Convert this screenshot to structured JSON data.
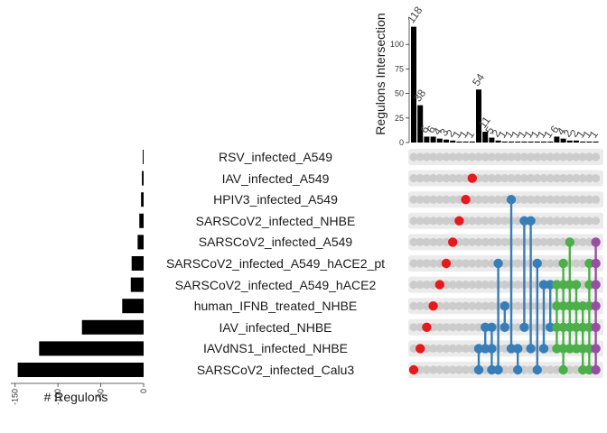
{
  "chart_data": {
    "type": "upset",
    "intersection_axis": {
      "label": "Regulons Intersection",
      "ticks": [
        0,
        25,
        50,
        75,
        100
      ],
      "ylim": [
        0,
        125
      ]
    },
    "set_size_axis": {
      "label": "# Regulons",
      "ticks": [
        "-150",
        "-100",
        "-50",
        "0"
      ],
      "xlim": [
        -155,
        0
      ]
    },
    "sets": [
      {
        "name": "RSV_infected_A549",
        "size": 1
      },
      {
        "name": "IAV_infected_A549",
        "size": 2
      },
      {
        "name": "HPIV3_infected_A549",
        "size": 3
      },
      {
        "name": "SARSCoV2_infected_NHBE",
        "size": 5
      },
      {
        "name": "SARSCoV2_infected_A549",
        "size": 7
      },
      {
        "name": "SARSCoV2_infected_A549_hACE2_pt",
        "size": 14
      },
      {
        "name": "SARSCoV2_infected_A549_hACE2",
        "size": 15
      },
      {
        "name": "human_IFNB_treated_NHBE",
        "size": 25
      },
      {
        "name": "IAV_infected_NHBE",
        "size": 72
      },
      {
        "name": "IAVdNS1_infected_NHBE",
        "size": 122
      },
      {
        "name": "SARSCoV2_infected_Calu3",
        "size": 147
      }
    ],
    "intersections": [
      {
        "size": 118,
        "label": "118",
        "sets": [
          10
        ],
        "color": "#e41a1c"
      },
      {
        "size": 38,
        "label": "38",
        "sets": [
          9
        ],
        "color": "#e41a1c"
      },
      {
        "size": 6,
        "label": "6",
        "sets": [
          8
        ],
        "color": "#e41a1c"
      },
      {
        "size": 6,
        "label": "6",
        "sets": [
          7
        ],
        "color": "#e41a1c"
      },
      {
        "size": 4,
        "label": "4",
        "sets": [
          6
        ],
        "color": "#e41a1c"
      },
      {
        "size": 3,
        "label": "3",
        "sets": [
          5
        ],
        "color": "#e41a1c"
      },
      {
        "size": 2,
        "label": "2",
        "sets": [
          4
        ],
        "color": "#e41a1c"
      },
      {
        "size": 1,
        "label": "1",
        "sets": [
          3
        ],
        "color": "#e41a1c"
      },
      {
        "size": 1,
        "label": "1",
        "sets": [
          2
        ],
        "color": "#e41a1c"
      },
      {
        "size": 1,
        "label": "1",
        "sets": [
          1
        ],
        "color": "#e41a1c"
      },
      {
        "size": 54,
        "label": "54",
        "sets": [
          9,
          10
        ],
        "color": "#377eb8"
      },
      {
        "size": 11,
        "label": "11",
        "sets": [
          8,
          9
        ],
        "color": "#377eb8"
      },
      {
        "size": 5,
        "label": "5",
        "sets": [
          8,
          9,
          10
        ],
        "color": "#377eb8"
      },
      {
        "size": 2,
        "label": "2",
        "sets": [
          5,
          10
        ],
        "color": "#377eb8"
      },
      {
        "size": 1,
        "label": "1",
        "sets": [
          7,
          8
        ],
        "color": "#377eb8"
      },
      {
        "size": 1,
        "label": "1",
        "sets": [
          2,
          9
        ],
        "color": "#377eb8"
      },
      {
        "size": 1,
        "label": "1",
        "sets": [
          9,
          10
        ],
        "color": "#377eb8"
      },
      {
        "size": 1,
        "label": "1",
        "sets": [
          3,
          8
        ],
        "color": "#377eb8"
      },
      {
        "size": 1,
        "label": "1",
        "sets": [
          3,
          9
        ],
        "color": "#377eb8"
      },
      {
        "size": 1,
        "label": "1",
        "sets": [
          5,
          10
        ],
        "color": "#377eb8"
      },
      {
        "size": 1,
        "label": "1",
        "sets": [
          6,
          9
        ],
        "color": "#377eb8"
      },
      {
        "size": 1,
        "label": "1",
        "sets": [
          6,
          8
        ],
        "color": "#377eb8"
      },
      {
        "size": 6,
        "label": "6",
        "sets": [
          6,
          7,
          8,
          9
        ],
        "color": "#4daf4a"
      },
      {
        "size": 4,
        "label": "4",
        "sets": [
          5,
          6,
          7,
          8,
          9,
          10
        ],
        "color": "#4daf4a"
      },
      {
        "size": 2,
        "label": "2",
        "sets": [
          4,
          6,
          7,
          8,
          9
        ],
        "color": "#4daf4a"
      },
      {
        "size": 2,
        "label": "2",
        "sets": [
          6,
          7,
          8,
          9
        ],
        "color": "#4daf4a"
      },
      {
        "size": 1,
        "label": "1",
        "sets": [
          7,
          8,
          9,
          10
        ],
        "color": "#4daf4a"
      },
      {
        "size": 1,
        "label": "1",
        "sets": [
          5,
          6,
          7,
          8,
          9,
          10
        ],
        "color": "#4daf4a"
      },
      {
        "size": 1,
        "label": "1",
        "sets": [
          4,
          5,
          6,
          7,
          8,
          9,
          10
        ],
        "color": "#984ea3"
      }
    ],
    "colors": {
      "one_set": "#e41a1c",
      "two_sets": "#377eb8",
      "three_to_six_sets": "#4daf4a",
      "seven_sets": "#984ea3",
      "empty_dot": "#cccccc",
      "row_band": "#ebebeb"
    }
  }
}
